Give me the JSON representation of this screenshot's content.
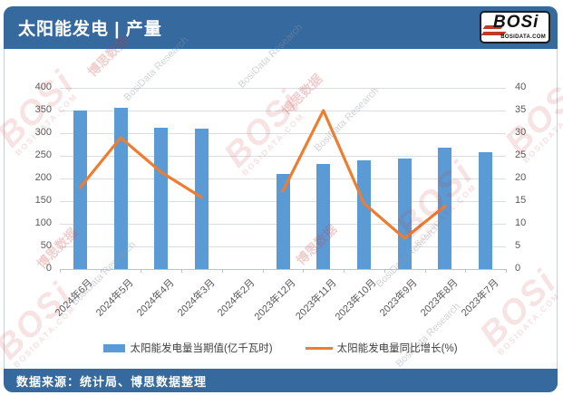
{
  "header": {
    "title": "太阳能发电 | 产量",
    "logo": {
      "text": "BOSi",
      "subtext": "BOSIDATA.COM"
    }
  },
  "footer": {
    "source": "数据来源：统计局、博思数据整理"
  },
  "legend": {
    "bar_label": "太阳能发电量当期值(亿千瓦时)",
    "line_label": "太阳能发电量同比增长(%)"
  },
  "watermark": {
    "logo_text": "BOSi",
    "logo_subtext": "BOSIDATA.COM",
    "cn_text": "博思数据",
    "en_text": "BosiData Research"
  },
  "colors": {
    "header_bg": "#36699E",
    "footer_bg": "#36699E",
    "bar": "#5B9BD5",
    "line": "#ED7D31",
    "gridline": "#dadde1",
    "axis_text": "#595959"
  },
  "chart_data": {
    "type": "combo",
    "title": "",
    "xlabel": "",
    "ylabel_left": "亿千瓦时",
    "ylabel_right": "%",
    "grid": true,
    "legend_position": "bottom",
    "categories": [
      "2024年6月",
      "2024年5月",
      "2024年4月",
      "2024年3月",
      "2024年2月",
      "2023年12月",
      "2023年11月",
      "2023年10月",
      "2023年9月",
      "2023年8月",
      "2023年7月"
    ],
    "series": [
      {
        "name": "太阳能发电量当期值(亿千瓦时)",
        "type": "bar",
        "axis": "left",
        "values": [
          351,
          357,
          313,
          311,
          null,
          210,
          233,
          241,
          244,
          268,
          258
        ]
      },
      {
        "name": "太阳能发电量同比增长(%)",
        "type": "line",
        "axis": "right",
        "values": [
          18,
          29,
          21.4,
          15.8,
          null,
          17.2,
          35,
          14.5,
          6.8,
          13.9,
          null
        ]
      }
    ],
    "left_axis": {
      "min": 0,
      "max": 400,
      "step": 50
    },
    "right_axis": {
      "min": 0,
      "max": 40,
      "step": 5
    }
  }
}
